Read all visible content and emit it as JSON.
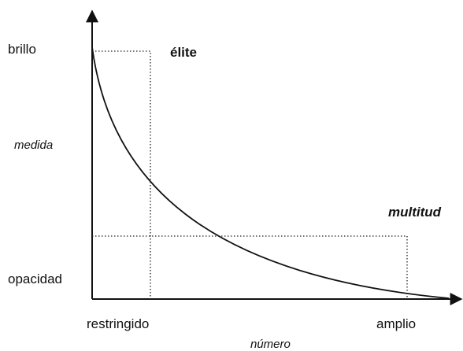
{
  "labels": {
    "y_top": "brillo",
    "y_axis": "medida",
    "y_bottom": "opacidad",
    "x_left": "restringido",
    "x_right": "amplio",
    "x_axis": "número",
    "elite": "élite",
    "multitud": "multitud"
  }
}
